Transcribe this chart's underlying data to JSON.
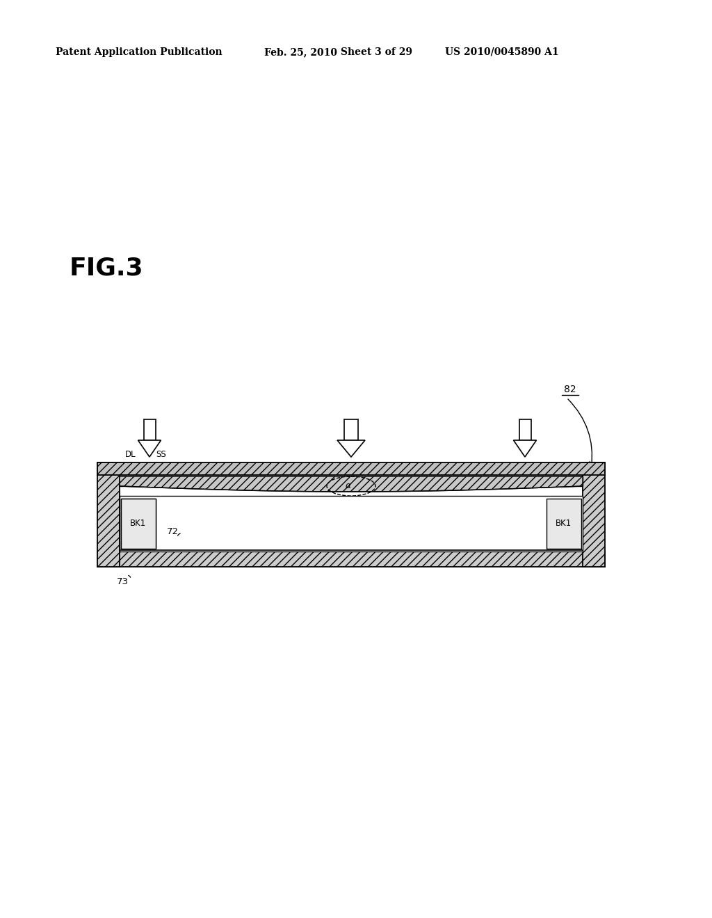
{
  "bg_color": "#ffffff",
  "title_header": "Patent Application Publication",
  "date_header": "Feb. 25, 2010",
  "sheet_header": "Sheet 3 of 29",
  "patent_header": "US 2010/0045890 A1",
  "fig_label": "FIG.3",
  "ref_82": "82",
  "ref_72": "72",
  "ref_73": "73",
  "ref_DL": "DL",
  "ref_SS": "SS",
  "ref_alpha": "α",
  "ref_BK1": "BK1"
}
